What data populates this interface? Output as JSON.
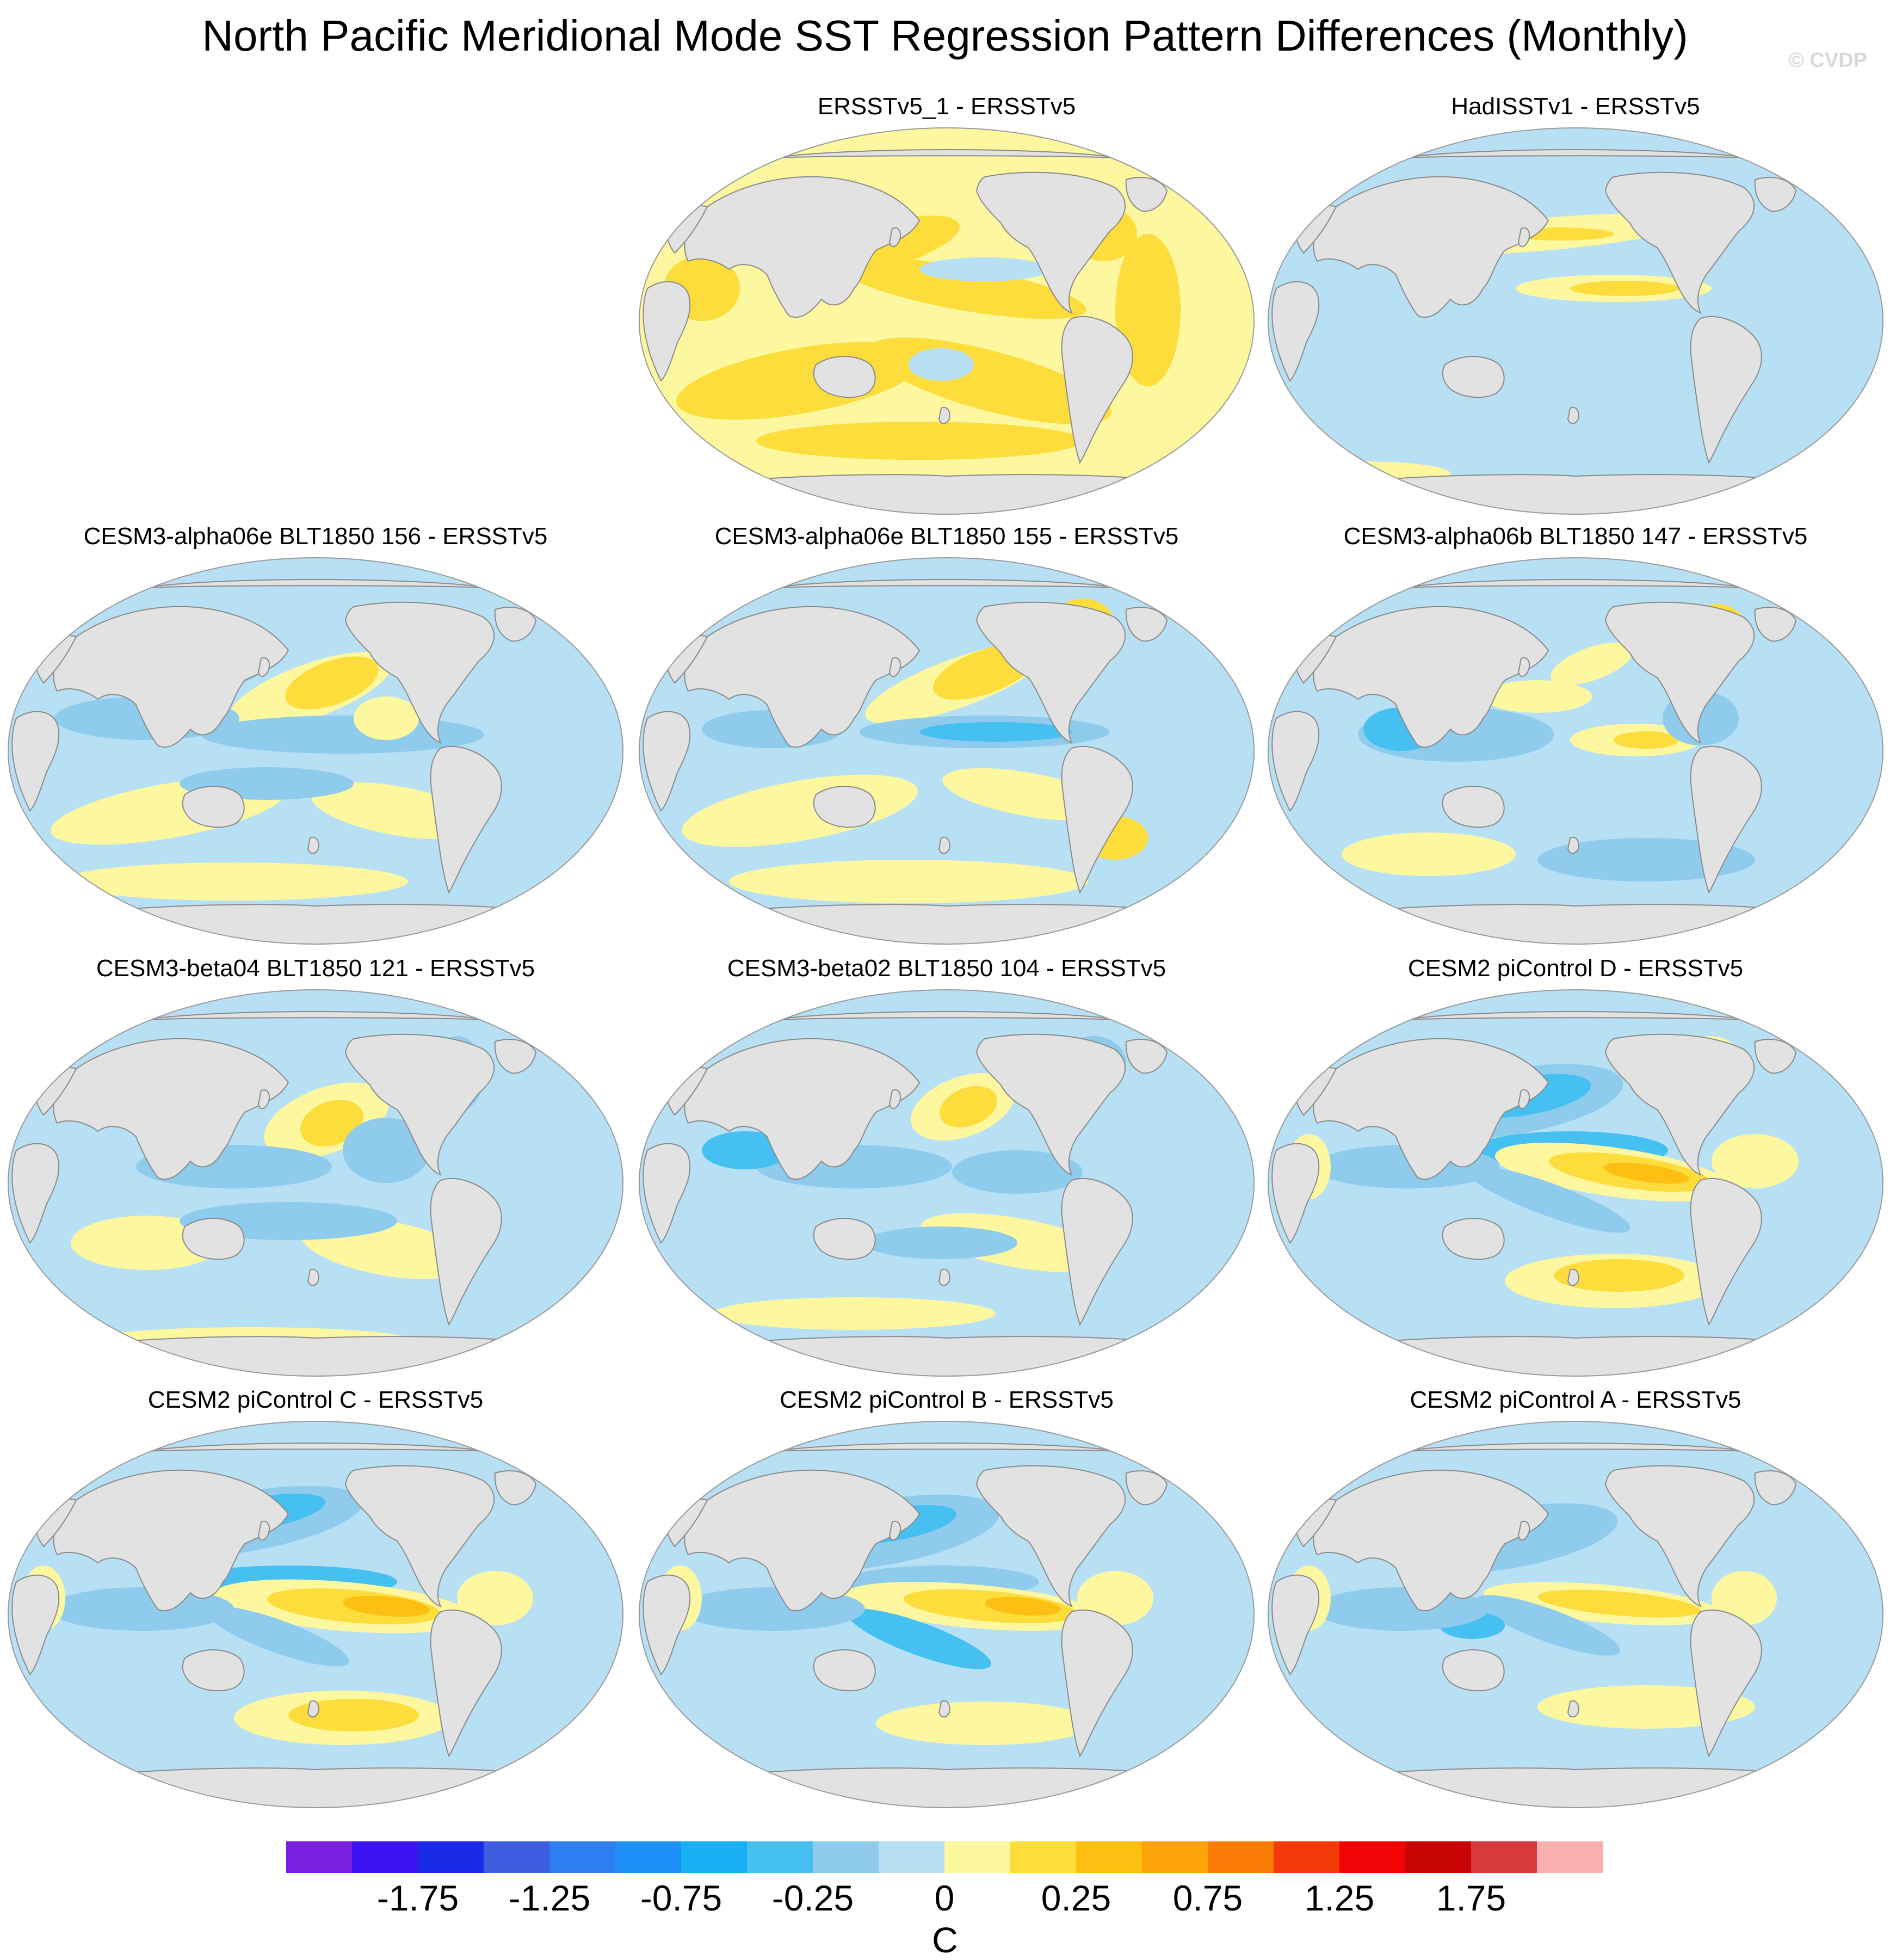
{
  "figure": {
    "title": "North Pacific Meridional Mode SST Regression Pattern Differences (Monthly)",
    "watermark": "© CVDP"
  },
  "panels": [
    {
      "title": "ERSSTv5_1 - ERSSTv5",
      "pattern": "warm"
    },
    {
      "title": "HadISSTv1 - ERSSTv5",
      "pattern": "cool"
    },
    {
      "title": "CESM3-alpha06e BLT1850 156 - ERSSTv5",
      "pattern": "mixed-a"
    },
    {
      "title": "CESM3-alpha06e BLT1850 155 - ERSSTv5",
      "pattern": "mixed-b"
    },
    {
      "title": "CESM3-alpha06b BLT1850 147 - ERSSTv5",
      "pattern": "mixed-c"
    },
    {
      "title": "CESM3-beta04 BLT1850 121 - ERSSTv5",
      "pattern": "mixed-d"
    },
    {
      "title": "CESM3-beta02 BLT1850 104 - ERSSTv5",
      "pattern": "mixed-e"
    },
    {
      "title": "CESM2 piControl D - ERSSTv5",
      "pattern": "enso-a"
    },
    {
      "title": "CESM2 piControl C - ERSSTv5",
      "pattern": "enso-b"
    },
    {
      "title": "CESM2 piControl B - ERSSTv5",
      "pattern": "enso-c"
    },
    {
      "title": "CESM2 piControl A - ERSSTv5",
      "pattern": "enso-d"
    }
  ],
  "colorbar": {
    "unit": "C",
    "levels": [
      -2.0,
      -1.75,
      -1.5,
      -1.25,
      -1.0,
      -0.75,
      -0.5,
      -0.25,
      -0.1,
      0,
      0.1,
      0.25,
      0.5,
      0.75,
      1.0,
      1.25,
      1.5,
      1.75,
      2.0
    ],
    "labels": [
      "-1.75",
      "-1.25",
      "-0.75",
      "-0.25",
      "0",
      "0.25",
      "0.75",
      "1.25",
      "1.75"
    ],
    "colors": [
      "#7b1fe0",
      "#3b12f0",
      "#1a2ae6",
      "#3d5ee0",
      "#2f7ef0",
      "#1e90f5",
      "#17b0f5",
      "#45c0f0",
      "#8ecbec",
      "#b8e0f5",
      "#fdf7a0",
      "#fcdd3c",
      "#fcbf12",
      "#fca30a",
      "#fb7c06",
      "#f53a0a",
      "#f20404",
      "#c80404",
      "#d63a3a",
      "#f8b0b0"
    ]
  }
}
